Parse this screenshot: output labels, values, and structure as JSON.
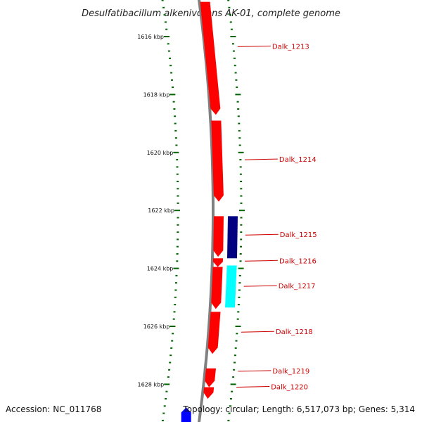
{
  "title": "Desulfatibacillum alkenivorans AK-01, complete genome",
  "accession": "Accession: NC_011768",
  "topology": "Topology: circular; Length: 6,517,073 bp; Genes: 5,314",
  "colors": {
    "forward_gene": "#ff0000",
    "reverse_dark": "#000080",
    "reverse_light": "#00ffff",
    "blue_gene": "#0000ff",
    "backbone": "#808080",
    "ticks": "#006400",
    "gene_label": "#cc0000"
  },
  "scale_labels": [
    {
      "kbp": 1616,
      "text": "1616 kbp"
    },
    {
      "kbp": 1618,
      "text": "1618 kbp"
    },
    {
      "kbp": 1620,
      "text": "1620 kbp"
    },
    {
      "kbp": 1622,
      "text": "1622 kbp"
    },
    {
      "kbp": 1624,
      "text": "1624 kbp"
    },
    {
      "kbp": 1626,
      "text": "1626 kbp"
    },
    {
      "kbp": 1628,
      "text": "1628 kbp"
    }
  ],
  "genes": [
    {
      "label": "Dalk_1213",
      "start_kbp": 1614.8,
      "end_kbp": 1618.7,
      "track": "forward",
      "color": "#ff0000",
      "label_kbp": 1616.35
    },
    {
      "label": "Dalk_1214",
      "start_kbp": 1618.9,
      "end_kbp": 1621.7,
      "track": "forward",
      "color": "#ff0000",
      "label_kbp": 1620.25
    },
    {
      "label": "Dalk_1215",
      "start_kbp": 1622.2,
      "end_kbp": 1623.6,
      "track": "forward",
      "color": "#ff0000",
      "label_kbp": 1622.85
    },
    {
      "label": "Dalk_1216",
      "start_kbp": 1623.65,
      "end_kbp": 1623.95,
      "track": "forward",
      "color": "#ff0000",
      "label_kbp": 1623.75
    },
    {
      "label": "Dalk_1217",
      "start_kbp": 1623.95,
      "end_kbp": 1625.4,
      "track": "forward",
      "color": "#ff0000",
      "label_kbp": 1624.62
    },
    {
      "label": "Dalk_1218",
      "start_kbp": 1625.5,
      "end_kbp": 1626.95,
      "track": "forward",
      "color": "#ff0000",
      "label_kbp": 1626.2
    },
    {
      "label": "Dalk_1219",
      "start_kbp": 1627.45,
      "end_kbp": 1628.1,
      "track": "forward",
      "color": "#ff0000",
      "label_kbp": 1627.55
    },
    {
      "label": "Dalk_1220",
      "start_kbp": 1628.1,
      "end_kbp": 1628.5,
      "track": "forward",
      "color": "#ff0000",
      "label_kbp": 1628.1
    }
  ],
  "reverse_genes": [
    {
      "start_kbp": 1622.2,
      "end_kbp": 1623.65,
      "color": "#000080"
    },
    {
      "start_kbp": 1623.9,
      "end_kbp": 1625.35,
      "color": "#00ffff"
    }
  ],
  "other_features": [
    {
      "start_kbp": 1628.8,
      "end_kbp": 1629.4,
      "color": "#0000ff"
    }
  ]
}
